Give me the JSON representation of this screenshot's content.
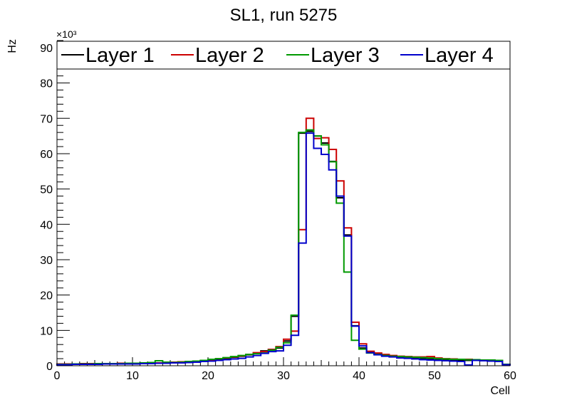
{
  "chart_data": {
    "type": "step-histogram",
    "title": "SL1, run 5275",
    "xlabel": "Cell",
    "ylabel": "Hz",
    "y_multiplier_label": "×10³",
    "xlim": [
      0,
      60
    ],
    "ylim": [
      0,
      92
    ],
    "x_ticks": [
      0,
      10,
      20,
      30,
      40,
      50,
      60
    ],
    "y_ticks": [
      0,
      10,
      20,
      30,
      40,
      50,
      60,
      70,
      80,
      90
    ],
    "bin_edges_start": 0,
    "bin_width": 1,
    "legend": [
      "Layer 1",
      "Layer 2",
      "Layer 3",
      "Layer 4"
    ],
    "series": [
      {
        "name": "Layer 1",
        "color": "#000000",
        "values": [
          0.4,
          0.4,
          0.5,
          0.5,
          0.5,
          0.6,
          0.5,
          0.5,
          0.6,
          0.6,
          0.7,
          0.8,
          0.7,
          0.7,
          0.8,
          0.8,
          1.0,
          1.1,
          1.2,
          1.4,
          1.6,
          1.9,
          2.1,
          2.4,
          2.7,
          3.1,
          3.6,
          4.2,
          4.6,
          5.0,
          7.0,
          14.0,
          65.8,
          66.3,
          65.0,
          63.0,
          57.8,
          47.5,
          37.0,
          11.3,
          5.0,
          3.8,
          3.3,
          3.0,
          2.8,
          2.5,
          2.2,
          2.1,
          1.9,
          1.8,
          1.7,
          1.6,
          1.6,
          1.5,
          1.5,
          1.5,
          1.4,
          1.4,
          1.3,
          0.4
        ]
      },
      {
        "name": "Layer 2",
        "color": "#cc0000",
        "values": [
          0.5,
          0.5,
          0.5,
          0.6,
          0.6,
          0.6,
          0.6,
          0.6,
          0.7,
          0.7,
          0.7,
          0.8,
          0.8,
          0.8,
          0.9,
          1.0,
          1.1,
          1.2,
          1.3,
          1.5,
          1.7,
          2.0,
          2.2,
          2.5,
          2.8,
          3.2,
          3.7,
          4.0,
          4.6,
          5.4,
          7.5,
          9.8,
          38.5,
          70.0,
          64.3,
          64.5,
          61.2,
          52.3,
          39.0,
          12.3,
          6.2,
          4.1,
          3.6,
          3.2,
          2.9,
          2.7,
          2.6,
          2.5,
          2.5,
          2.6,
          2.2,
          2.0,
          1.9,
          1.8,
          1.8,
          1.7,
          1.6,
          1.6,
          1.5,
          0.4
        ]
      },
      {
        "name": "Layer 3",
        "color": "#009900",
        "values": [
          0.4,
          0.4,
          0.5,
          0.5,
          0.5,
          0.6,
          0.6,
          0.6,
          0.6,
          0.7,
          0.7,
          0.8,
          0.9,
          1.4,
          1.0,
          0.9,
          1.0,
          1.2,
          1.3,
          1.5,
          1.8,
          2.0,
          2.3,
          2.6,
          2.9,
          3.2,
          3.4,
          3.6,
          4.4,
          5.2,
          6.5,
          14.3,
          66.0,
          66.7,
          65.0,
          62.5,
          57.7,
          46.0,
          26.5,
          7.2,
          4.7,
          3.6,
          3.2,
          2.9,
          2.7,
          2.6,
          2.5,
          2.4,
          2.3,
          2.2,
          2.0,
          1.9,
          1.8,
          1.8,
          1.7,
          1.7,
          1.6,
          1.6,
          1.5,
          0.4
        ]
      },
      {
        "name": "Layer 4",
        "color": "#0000cc",
        "values": [
          0.3,
          0.3,
          0.4,
          0.4,
          0.4,
          0.4,
          0.5,
          0.5,
          0.5,
          0.5,
          0.5,
          0.6,
          0.6,
          0.7,
          0.7,
          0.8,
          0.8,
          0.9,
          1.0,
          1.2,
          1.3,
          1.5,
          1.7,
          1.9,
          2.1,
          2.5,
          2.9,
          3.5,
          4.0,
          4.2,
          5.8,
          8.6,
          34.7,
          65.8,
          61.5,
          59.8,
          55.4,
          48.0,
          36.7,
          11.2,
          5.6,
          3.7,
          3.1,
          2.7,
          2.5,
          2.2,
          2.1,
          1.9,
          1.7,
          1.6,
          1.5,
          1.4,
          1.3,
          1.2,
          0.2,
          1.5,
          1.4,
          1.3,
          1.2,
          0.3
        ]
      }
    ]
  }
}
